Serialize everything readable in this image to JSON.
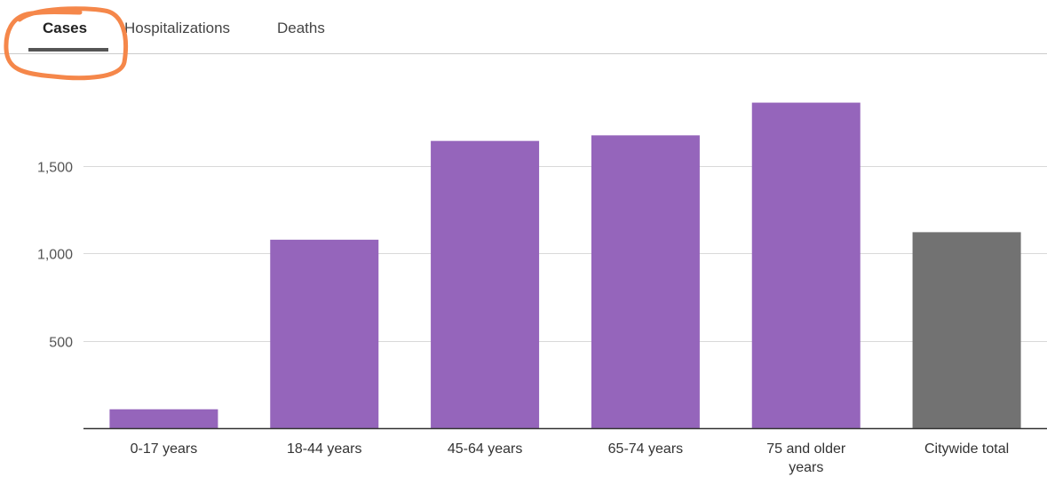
{
  "tabs": [
    {
      "label": "Cases",
      "active": true
    },
    {
      "label": "Hospitalizations",
      "active": false
    },
    {
      "label": "Deaths",
      "active": false
    }
  ],
  "colors": {
    "age_bar": "#9565bb",
    "total_bar": "#727272",
    "highlight": "#f5874a"
  },
  "chart_data": {
    "type": "bar",
    "categories": [
      "0-17 years",
      "18-44 years",
      "45-64 years",
      "65-74 years",
      "75 and older years",
      "Citywide total"
    ],
    "values": [
      108,
      1078,
      1643,
      1675,
      1862,
      1121
    ],
    "ylim": [
      0,
      2000
    ],
    "yticks": [
      500,
      1000,
      1500
    ],
    "ytick_labels": [
      "500",
      "1,000",
      "1,500"
    ],
    "grid": true,
    "legend": "none"
  }
}
